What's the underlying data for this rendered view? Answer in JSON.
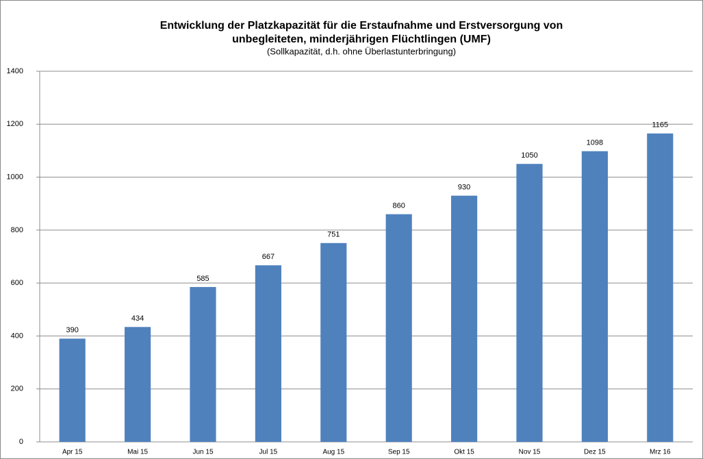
{
  "chart_data": {
    "type": "bar",
    "title": [
      "Entwicklung der Platzkapazität für die Erstaufnahme und Erstversorgung von",
      "unbegleiteten, minderjährigen Flüchtlingen (UMF)"
    ],
    "subtitle": "(Sollkapazität, d.h. ohne Überlastunterbringung)",
    "categories": [
      "Apr 15",
      "Mai 15",
      "Jun 15",
      "Jul 15",
      "Aug 15",
      "Sep 15",
      "Okt 15",
      "Nov 15",
      "Dez 15",
      "Mrz 16"
    ],
    "values": [
      390,
      434,
      585,
      667,
      751,
      860,
      930,
      1050,
      1098,
      1165
    ],
    "color": "#4f81bd",
    "ylim": [
      0,
      1400
    ],
    "yticks": [
      0,
      200,
      400,
      600,
      800,
      1000,
      1200,
      1400
    ],
    "grid": true
  }
}
